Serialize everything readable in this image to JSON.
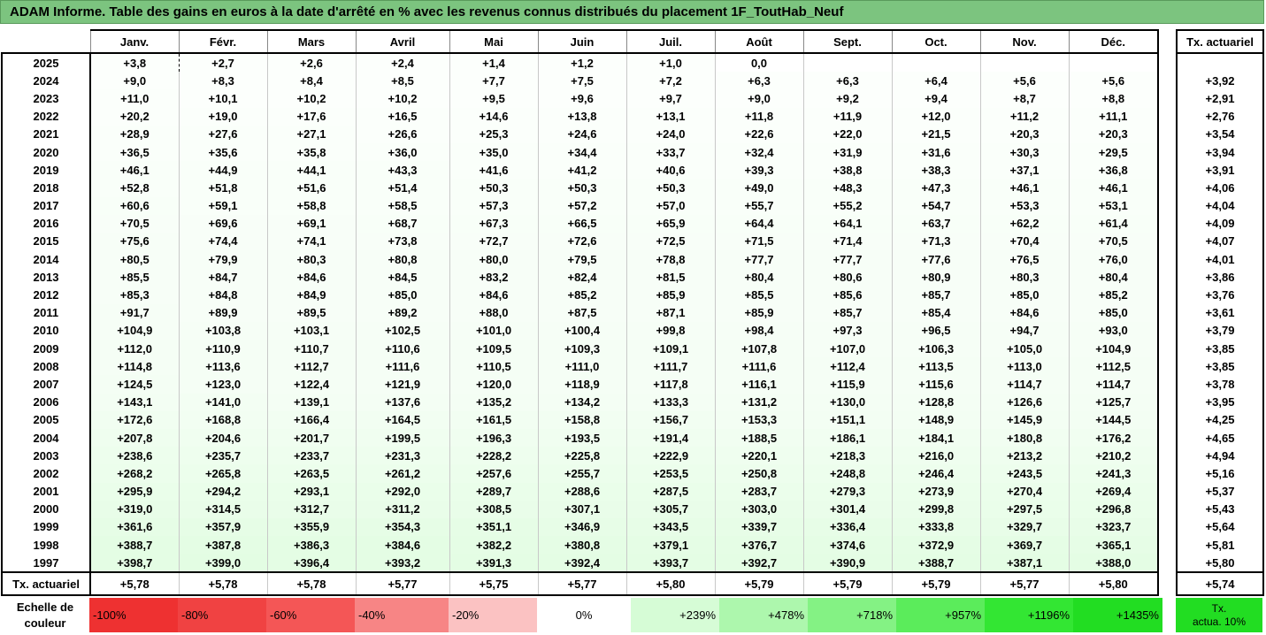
{
  "title": "ADAM Informe. Table des gains en euros à la date d'arrêté en % avec les revenus connus distribués du placement 1F_ToutHab_Neuf",
  "months": [
    "Janv.",
    "Févr.",
    "Mars",
    "Avril",
    "Mai",
    "Juin",
    "Juil.",
    "Août",
    "Sept.",
    "Oct.",
    "Nov.",
    "Déc."
  ],
  "rate_header": "Tx. actuariel",
  "rows": [
    {
      "year": "2025",
      "values": [
        "+3,8",
        "+2,7",
        "+2,6",
        "+2,4",
        "+1,4",
        "+1,2",
        "+1,0",
        "0,0",
        "",
        "",
        "",
        ""
      ],
      "rate": ""
    },
    {
      "year": "2024",
      "values": [
        "+9,0",
        "+8,3",
        "+8,4",
        "+8,5",
        "+7,7",
        "+7,5",
        "+7,2",
        "+6,3",
        "+6,3",
        "+6,4",
        "+5,6",
        "+5,6"
      ],
      "rate": "+3,92"
    },
    {
      "year": "2023",
      "values": [
        "+11,0",
        "+10,1",
        "+10,2",
        "+10,2",
        "+9,5",
        "+9,6",
        "+9,7",
        "+9,0",
        "+9,2",
        "+9,4",
        "+8,7",
        "+8,8"
      ],
      "rate": "+2,91"
    },
    {
      "year": "2022",
      "values": [
        "+20,2",
        "+19,0",
        "+17,6",
        "+16,5",
        "+14,6",
        "+13,8",
        "+13,1",
        "+11,8",
        "+11,9",
        "+12,0",
        "+11,2",
        "+11,1"
      ],
      "rate": "+2,76"
    },
    {
      "year": "2021",
      "values": [
        "+28,9",
        "+27,6",
        "+27,1",
        "+26,6",
        "+25,3",
        "+24,6",
        "+24,0",
        "+22,6",
        "+22,0",
        "+21,5",
        "+20,3",
        "+20,3"
      ],
      "rate": "+3,54"
    },
    {
      "year": "2020",
      "values": [
        "+36,5",
        "+35,6",
        "+35,8",
        "+36,0",
        "+35,0",
        "+34,4",
        "+33,7",
        "+32,4",
        "+31,9",
        "+31,6",
        "+30,3",
        "+29,5"
      ],
      "rate": "+3,94"
    },
    {
      "year": "2019",
      "values": [
        "+46,1",
        "+44,9",
        "+44,1",
        "+43,3",
        "+41,6",
        "+41,2",
        "+40,6",
        "+39,3",
        "+38,8",
        "+38,3",
        "+37,1",
        "+36,8"
      ],
      "rate": "+3,91"
    },
    {
      "year": "2018",
      "values": [
        "+52,8",
        "+51,8",
        "+51,6",
        "+51,4",
        "+50,3",
        "+50,3",
        "+50,3",
        "+49,0",
        "+48,3",
        "+47,3",
        "+46,1",
        "+46,1"
      ],
      "rate": "+4,06"
    },
    {
      "year": "2017",
      "values": [
        "+60,6",
        "+59,1",
        "+58,8",
        "+58,5",
        "+57,3",
        "+57,2",
        "+57,0",
        "+55,7",
        "+55,2",
        "+54,7",
        "+53,3",
        "+53,1"
      ],
      "rate": "+4,04"
    },
    {
      "year": "2016",
      "values": [
        "+70,5",
        "+69,6",
        "+69,1",
        "+68,7",
        "+67,3",
        "+66,5",
        "+65,9",
        "+64,4",
        "+64,1",
        "+63,7",
        "+62,2",
        "+61,4"
      ],
      "rate": "+4,09"
    },
    {
      "year": "2015",
      "values": [
        "+75,6",
        "+74,4",
        "+74,1",
        "+73,8",
        "+72,7",
        "+72,6",
        "+72,5",
        "+71,5",
        "+71,4",
        "+71,3",
        "+70,4",
        "+70,5"
      ],
      "rate": "+4,07"
    },
    {
      "year": "2014",
      "values": [
        "+80,5",
        "+79,9",
        "+80,3",
        "+80,8",
        "+80,0",
        "+79,5",
        "+78,8",
        "+77,7",
        "+77,7",
        "+77,6",
        "+76,5",
        "+76,0"
      ],
      "rate": "+4,01"
    },
    {
      "year": "2013",
      "values": [
        "+85,5",
        "+84,7",
        "+84,6",
        "+84,5",
        "+83,2",
        "+82,4",
        "+81,5",
        "+80,4",
        "+80,6",
        "+80,9",
        "+80,3",
        "+80,4"
      ],
      "rate": "+3,86"
    },
    {
      "year": "2012",
      "values": [
        "+85,3",
        "+84,8",
        "+84,9",
        "+85,0",
        "+84,6",
        "+85,2",
        "+85,9",
        "+85,5",
        "+85,6",
        "+85,7",
        "+85,0",
        "+85,2"
      ],
      "rate": "+3,76"
    },
    {
      "year": "2011",
      "values": [
        "+91,7",
        "+89,9",
        "+89,5",
        "+89,2",
        "+88,0",
        "+87,5",
        "+87,1",
        "+85,9",
        "+85,7",
        "+85,4",
        "+84,6",
        "+85,0"
      ],
      "rate": "+3,61"
    },
    {
      "year": "2010",
      "values": [
        "+104,9",
        "+103,8",
        "+103,1",
        "+102,5",
        "+101,0",
        "+100,4",
        "+99,8",
        "+98,4",
        "+97,3",
        "+96,5",
        "+94,7",
        "+93,0"
      ],
      "rate": "+3,79"
    },
    {
      "year": "2009",
      "values": [
        "+112,0",
        "+110,9",
        "+110,7",
        "+110,6",
        "+109,5",
        "+109,3",
        "+109,1",
        "+107,8",
        "+107,0",
        "+106,3",
        "+105,0",
        "+104,9"
      ],
      "rate": "+3,85"
    },
    {
      "year": "2008",
      "values": [
        "+114,8",
        "+113,6",
        "+112,7",
        "+111,6",
        "+110,5",
        "+111,0",
        "+111,7",
        "+111,6",
        "+112,4",
        "+113,5",
        "+113,0",
        "+112,5"
      ],
      "rate": "+3,85"
    },
    {
      "year": "2007",
      "values": [
        "+124,5",
        "+123,0",
        "+122,4",
        "+121,9",
        "+120,0",
        "+118,9",
        "+117,8",
        "+116,1",
        "+115,9",
        "+115,6",
        "+114,7",
        "+114,7"
      ],
      "rate": "+3,78"
    },
    {
      "year": "2006",
      "values": [
        "+143,1",
        "+141,0",
        "+139,1",
        "+137,6",
        "+135,2",
        "+134,2",
        "+133,3",
        "+131,2",
        "+130,0",
        "+128,8",
        "+126,6",
        "+125,7"
      ],
      "rate": "+3,95"
    },
    {
      "year": "2005",
      "values": [
        "+172,6",
        "+168,8",
        "+166,4",
        "+164,5",
        "+161,5",
        "+158,8",
        "+156,7",
        "+153,3",
        "+151,1",
        "+148,9",
        "+145,9",
        "+144,5"
      ],
      "rate": "+4,25"
    },
    {
      "year": "2004",
      "values": [
        "+207,8",
        "+204,6",
        "+201,7",
        "+199,5",
        "+196,3",
        "+193,5",
        "+191,4",
        "+188,5",
        "+186,1",
        "+184,1",
        "+180,8",
        "+176,2"
      ],
      "rate": "+4,65"
    },
    {
      "year": "2003",
      "values": [
        "+238,6",
        "+235,7",
        "+233,7",
        "+231,3",
        "+228,2",
        "+225,8",
        "+222,9",
        "+220,1",
        "+218,3",
        "+216,0",
        "+213,2",
        "+210,2"
      ],
      "rate": "+4,94"
    },
    {
      "year": "2002",
      "values": [
        "+268,2",
        "+265,8",
        "+263,5",
        "+261,2",
        "+257,6",
        "+255,7",
        "+253,5",
        "+250,8",
        "+248,8",
        "+246,4",
        "+243,5",
        "+241,3"
      ],
      "rate": "+5,16"
    },
    {
      "year": "2001",
      "values": [
        "+295,9",
        "+294,2",
        "+293,1",
        "+292,0",
        "+289,7",
        "+288,6",
        "+287,5",
        "+283,7",
        "+279,3",
        "+273,9",
        "+270,4",
        "+269,4"
      ],
      "rate": "+5,37"
    },
    {
      "year": "2000",
      "values": [
        "+319,0",
        "+314,5",
        "+312,7",
        "+311,2",
        "+308,5",
        "+307,1",
        "+305,7",
        "+303,0",
        "+301,4",
        "+299,8",
        "+297,5",
        "+296,8"
      ],
      "rate": "+5,43"
    },
    {
      "year": "1999",
      "values": [
        "+361,6",
        "+357,9",
        "+355,9",
        "+354,3",
        "+351,1",
        "+346,9",
        "+343,5",
        "+339,7",
        "+336,4",
        "+333,8",
        "+329,7",
        "+323,7"
      ],
      "rate": "+5,64"
    },
    {
      "year": "1998",
      "values": [
        "+388,7",
        "+387,8",
        "+386,3",
        "+384,6",
        "+382,2",
        "+380,8",
        "+379,1",
        "+376,7",
        "+374,6",
        "+372,9",
        "+369,7",
        "+365,1"
      ],
      "rate": "+5,81"
    },
    {
      "year": "1997",
      "values": [
        "+398,7",
        "+399,0",
        "+396,4",
        "+393,2",
        "+391,3",
        "+392,4",
        "+393,7",
        "+392,7",
        "+390,9",
        "+388,7",
        "+387,1",
        "+388,0"
      ],
      "rate": "+5,80"
    }
  ],
  "summary": {
    "label": "Tx. actuariel",
    "values": [
      "+5,78",
      "+5,78",
      "+5,78",
      "+5,77",
      "+5,75",
      "+5,77",
      "+5,80",
      "+5,79",
      "+5,79",
      "+5,79",
      "+5,77",
      "+5,80"
    ],
    "rate": "+5,74"
  },
  "scale": {
    "label_line1": "Echelle de",
    "label_line2": "couleur",
    "negative": [
      {
        "label": "-100%",
        "color": "#ee3131"
      },
      {
        "label": "-80%",
        "color": "#f04242"
      },
      {
        "label": "-60%",
        "color": "#f45656"
      },
      {
        "label": "-40%",
        "color": "#f78585"
      },
      {
        "label": "-20%",
        "color": "#fbc2c2"
      }
    ],
    "zero": {
      "label": "0%",
      "color": "#ffffff"
    },
    "positive": [
      {
        "label": "+239%",
        "color": "#d6fcd6"
      },
      {
        "label": "+478%",
        "color": "#adf7ad"
      },
      {
        "label": "+718%",
        "color": "#84f284"
      },
      {
        "label": "+957%",
        "color": "#5bec5b"
      },
      {
        "label": "+1196%",
        "color": "#33e633"
      },
      {
        "label": "+1435%",
        "color": "#22dd22"
      }
    ],
    "target_line1": "Tx.",
    "target_line2": "actua. 10%",
    "target_color": "#22dd22"
  },
  "colors": {
    "title_bg": "#7cc47f",
    "positive_scale_max": 1435
  }
}
